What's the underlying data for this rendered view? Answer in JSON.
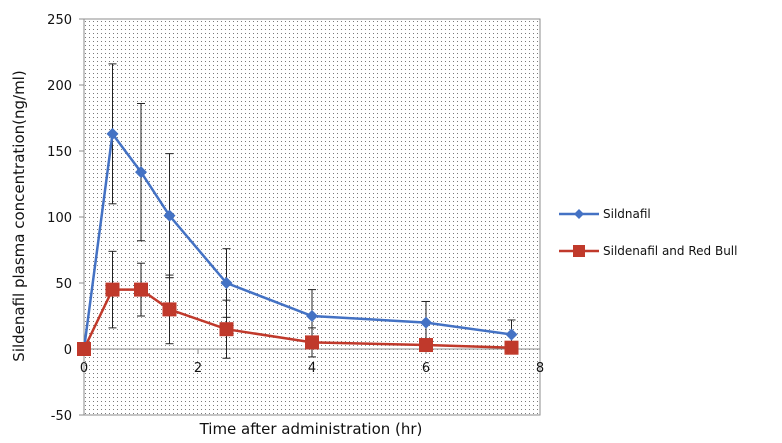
{
  "chart_data": {
    "type": "line",
    "title": "",
    "xlabel": "Time after administration (hr)",
    "ylabel": "Sildenafil plasma concentration(ng/ml)",
    "xlim": [
      0,
      8
    ],
    "ylim": [
      -50,
      250
    ],
    "xticks": [
      "0",
      "2",
      "4",
      "6",
      "8"
    ],
    "xtick_values": [
      0,
      2,
      4,
      6,
      8
    ],
    "yticks": [
      "-50",
      "0",
      "50",
      "100",
      "150",
      "200",
      "250"
    ],
    "ytick_values": [
      -50,
      0,
      50,
      100,
      150,
      200,
      250
    ],
    "grid": false,
    "plot_background": "dotted",
    "legend_position": "right",
    "series": [
      {
        "name": "Sildnafil",
        "color": "#4472C4",
        "marker": "diamond",
        "x": [
          0,
          0.5,
          1,
          1.5,
          2.5,
          4,
          6,
          7.5
        ],
        "y": [
          0,
          163,
          134,
          101,
          50,
          25,
          20,
          11
        ],
        "error": [
          0,
          53,
          52,
          47,
          26,
          20,
          16,
          11
        ]
      },
      {
        "name": "Sildenafil and Red Bull",
        "color": "#C0392B",
        "marker": "square",
        "x": [
          0,
          0.5,
          1,
          1.5,
          2.5,
          4,
          6,
          7.5
        ],
        "y": [
          0,
          45,
          45,
          30,
          15,
          5,
          3,
          1
        ],
        "error": [
          0,
          29,
          20,
          26,
          22,
          11,
          0,
          0
        ]
      }
    ]
  }
}
